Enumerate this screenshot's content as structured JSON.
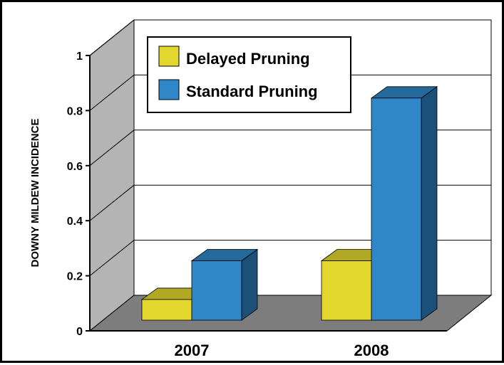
{
  "chart_data": {
    "type": "bar",
    "categories": [
      "2007",
      "2008"
    ],
    "series": [
      {
        "name": "Delayed Pruning",
        "color": "#E3D72E",
        "values": [
          0.08,
          0.23
        ]
      },
      {
        "name": "Standard Pruning",
        "color": "#2F86C8",
        "values": [
          0.23,
          0.86
        ]
      }
    ],
    "ylabel": "DOWNY MILDEW INCIDENCE",
    "xlabel": "",
    "ylim": [
      0,
      1
    ],
    "yticks": [
      "0",
      "0.2",
      "0.4",
      "0.6",
      "0.8",
      "1"
    ],
    "grid": true,
    "legend_position": "top-left",
    "style": "3d-clustered"
  }
}
